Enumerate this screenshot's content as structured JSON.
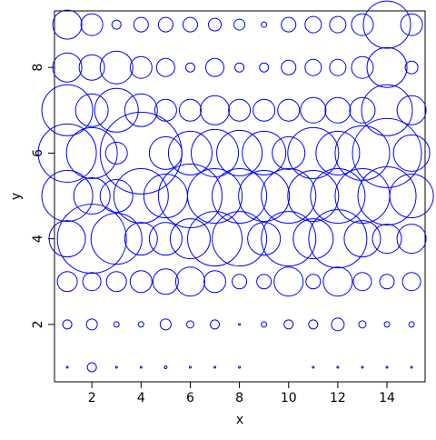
{
  "chart_data": {
    "type": "scatter",
    "x_label": "x",
    "y_label": "y",
    "color": "#0000ff",
    "x": [
      1,
      2,
      3,
      4,
      5,
      6,
      7,
      8,
      9,
      10,
      11,
      12,
      13,
      14,
      15,
      1,
      2,
      3,
      4,
      5,
      6,
      7,
      8,
      9,
      10,
      11,
      12,
      13,
      14,
      15,
      1,
      2,
      3,
      4,
      5,
      6,
      7,
      8,
      9,
      10,
      11,
      12,
      13,
      14,
      15,
      1,
      2,
      3,
      4,
      5,
      6,
      7,
      8,
      9,
      10,
      11,
      12,
      13,
      14,
      15,
      1,
      2,
      3,
      4,
      5,
      6,
      7,
      8,
      9,
      10,
      11,
      12,
      13,
      14,
      15,
      1,
      2,
      3,
      4,
      5,
      6,
      7,
      8,
      9,
      10,
      11,
      12,
      13,
      14,
      15,
      1,
      2,
      3,
      4,
      5,
      6,
      7,
      8,
      9,
      10,
      11,
      12,
      13,
      14,
      15,
      1,
      2,
      3,
      4,
      5,
      6,
      7,
      8,
      9,
      10,
      11,
      12,
      13,
      14,
      15,
      1,
      2,
      3,
      4,
      5,
      6,
      7,
      8,
      9,
      10,
      11,
      12,
      13,
      14,
      15
    ],
    "y": [
      1,
      1,
      1,
      1,
      1,
      1,
      1,
      1,
      1,
      1,
      1,
      1,
      1,
      1,
      1,
      2,
      2,
      2,
      2,
      2,
      2,
      2,
      2,
      2,
      2,
      2,
      2,
      2,
      2,
      2,
      3,
      3,
      3,
      3,
      3,
      3,
      3,
      3,
      3,
      3,
      3,
      3,
      3,
      3,
      3,
      4,
      4,
      4,
      4,
      4,
      4,
      4,
      4,
      4,
      4,
      4,
      4,
      4,
      4,
      4,
      5,
      5,
      5,
      5,
      5,
      5,
      5,
      5,
      5,
      5,
      5,
      5,
      5,
      5,
      5,
      6,
      6,
      6,
      6,
      6,
      6,
      6,
      6,
      6,
      6,
      6,
      6,
      6,
      6,
      6,
      7,
      7,
      7,
      7,
      7,
      7,
      7,
      7,
      7,
      7,
      7,
      7,
      7,
      7,
      7,
      8,
      8,
      8,
      8,
      8,
      8,
      8,
      8,
      8,
      8,
      8,
      8,
      8,
      8,
      8,
      9,
      9,
      9,
      9,
      9,
      9,
      9,
      9,
      9,
      9,
      9,
      9,
      9,
      9,
      9
    ],
    "sizes": [
      1,
      5,
      1,
      1,
      1.5,
      1,
      1,
      1,
      0,
      0,
      1,
      1,
      1,
      1,
      1,
      5,
      6,
      3,
      3,
      6,
      4,
      5,
      1,
      3,
      5,
      5,
      7,
      4,
      3,
      3,
      11,
      10,
      11,
      12,
      14,
      16,
      12,
      8,
      8,
      16,
      8,
      16,
      10,
      8,
      10,
      20,
      38,
      28,
      18,
      18,
      22,
      30,
      30,
      18,
      30,
      22,
      32,
      20,
      16,
      16,
      28,
      20,
      18,
      30,
      24,
      35,
      30,
      30,
      28,
      30,
      28,
      30,
      30,
      32,
      24,
      32,
      28,
      12,
      45,
      18,
      24,
      26,
      25,
      24,
      18,
      28,
      24,
      30,
      38,
      20,
      28,
      18,
      24,
      18,
      12,
      12,
      16,
      12,
      12,
      12,
      14,
      14,
      14,
      28,
      16,
      16,
      14,
      18,
      12,
      10,
      5,
      10,
      5,
      5,
      8,
      9,
      9,
      12,
      22,
      7,
      16,
      12,
      5,
      8,
      8,
      8,
      7,
      6,
      3,
      8,
      9,
      9,
      12,
      26,
      12
    ],
    "xlim": [
      0.48,
      15.55
    ],
    "ylim": [
      0.66,
      9.32
    ],
    "xticks": [
      2,
      4,
      6,
      8,
      10,
      12,
      14
    ],
    "yticks": [
      2,
      4,
      6,
      8
    ]
  }
}
